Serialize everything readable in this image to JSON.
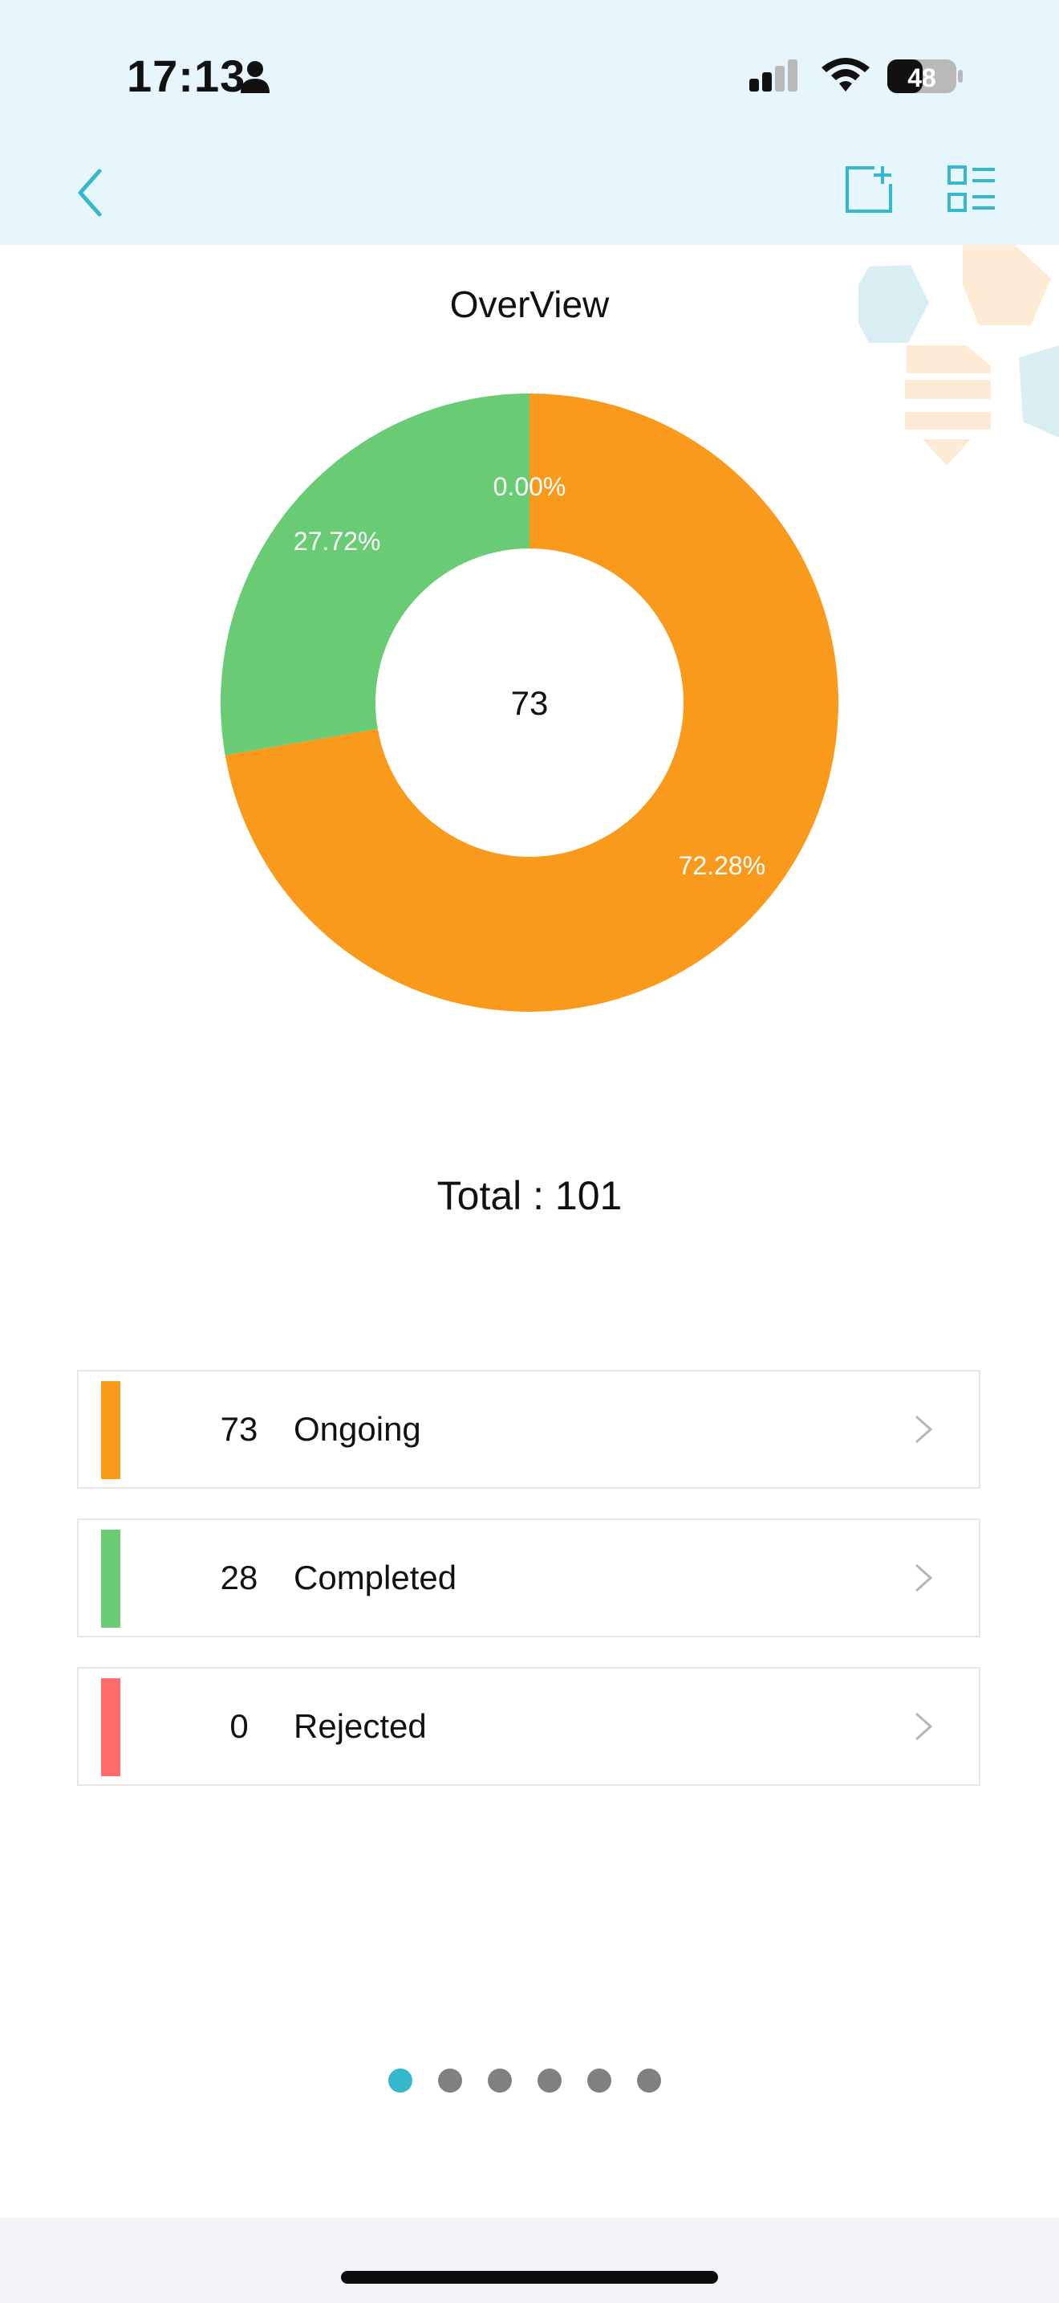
{
  "status_bar": {
    "time": "17:13",
    "battery_level": "48"
  },
  "toolbar": {
    "back_icon": "chevron-left-icon",
    "add_icon": "add-square-icon",
    "list_icon": "list-view-icon",
    "accent_color": "#36b8cc"
  },
  "overview": {
    "title": "OverView",
    "center_value": "73",
    "total_text": "Total : 101"
  },
  "chart_data": {
    "type": "pie",
    "style": "donut",
    "center_label": "73",
    "slices": [
      {
        "name": "Ongoing",
        "value": 73,
        "label": "72.28%",
        "color": "#f99a1c"
      },
      {
        "name": "Completed",
        "value": 28,
        "label": "27.72%",
        "color": "#69cc74"
      },
      {
        "name": "Rejected",
        "value": 0,
        "label": "0.00%",
        "color": "#ff6b6b"
      }
    ]
  },
  "status_list": [
    {
      "count": "73",
      "label": "Ongoing",
      "color": "#f99a1c"
    },
    {
      "count": "28",
      "label": "Completed",
      "color": "#69cc74"
    },
    {
      "count": "0",
      "label": "Rejected",
      "color": "#ff6b6b"
    }
  ],
  "pager": {
    "total_pages": 6,
    "active_index": 0
  }
}
